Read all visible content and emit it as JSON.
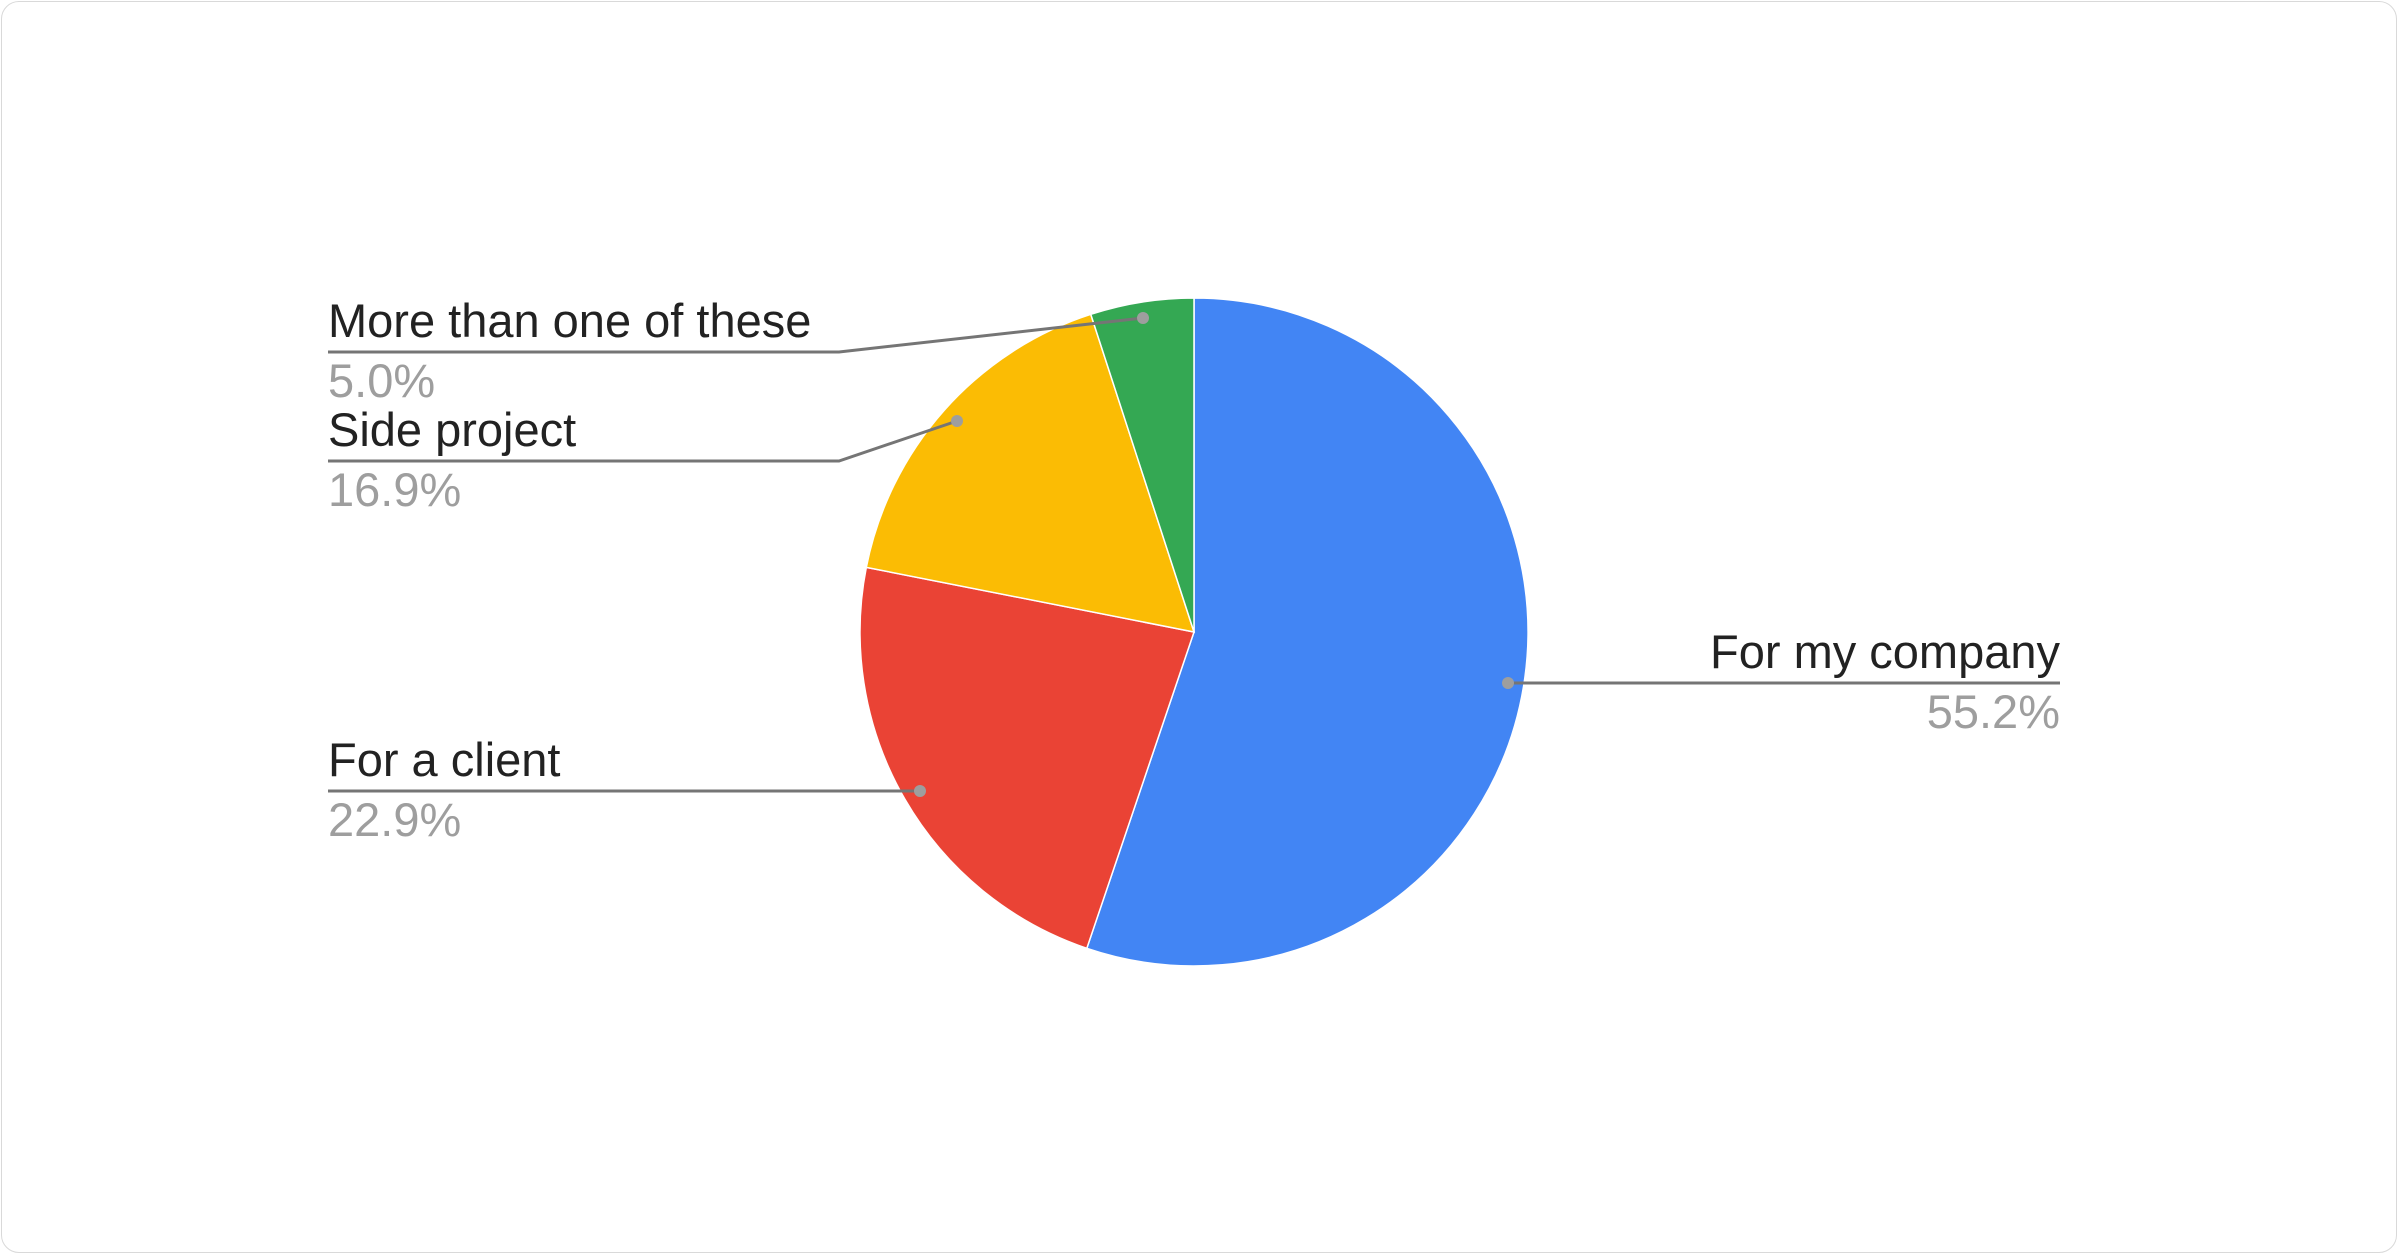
{
  "chart_data": {
    "type": "pie",
    "title": "",
    "start_angle": "top, clockwise",
    "legend": "labels with leader lines",
    "slices": [
      {
        "label": "For my company",
        "value": 55.2,
        "value_label": "55.2%",
        "color": "#4285f4"
      },
      {
        "label": "For a client",
        "value": 22.9,
        "value_label": "22.9%",
        "color": "#ea4335"
      },
      {
        "label": "Side project",
        "value": 16.9,
        "value_label": "16.9%",
        "color": "#fbbc04"
      },
      {
        "label": "More than one of these",
        "value": 5.0,
        "value_label": "5.0%",
        "color": "#34a853"
      }
    ]
  }
}
